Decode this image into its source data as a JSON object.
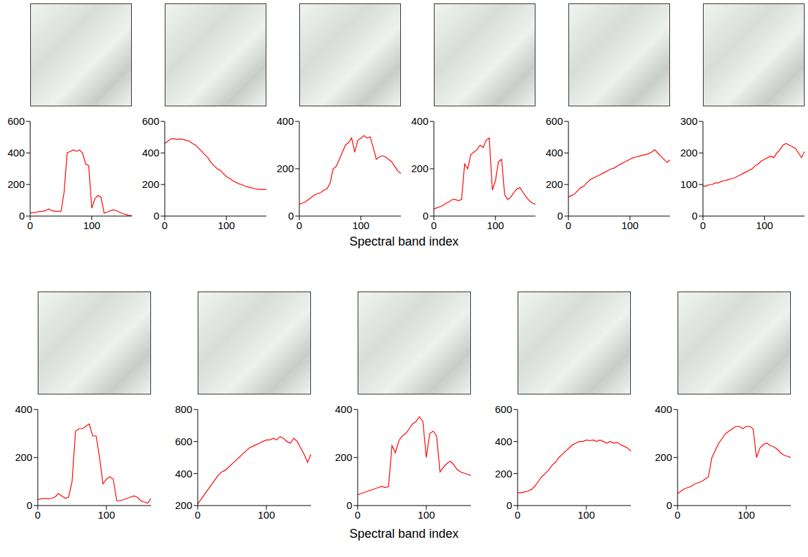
{
  "chart_data": [
    {
      "type": "line",
      "xlim": [
        0,
        165
      ],
      "xticks": [
        0,
        100
      ],
      "ylim": [
        0,
        600
      ],
      "yticks": [
        0,
        200,
        400,
        600
      ],
      "color": "#ff0000",
      "x": [
        0,
        5,
        10,
        15,
        20,
        25,
        30,
        35,
        40,
        45,
        50,
        55,
        60,
        65,
        70,
        75,
        80,
        85,
        90,
        95,
        100,
        105,
        110,
        115,
        120,
        125,
        130,
        135,
        140,
        145,
        150,
        155,
        160,
        165
      ],
      "values": [
        20,
        22,
        25,
        28,
        30,
        35,
        45,
        35,
        30,
        30,
        30,
        150,
        400,
        410,
        420,
        410,
        420,
        400,
        330,
        320,
        50,
        110,
        130,
        120,
        20,
        25,
        35,
        40,
        35,
        25,
        15,
        10,
        5,
        3
      ]
    },
    {
      "type": "line",
      "xlim": [
        0,
        165
      ],
      "xticks": [
        0,
        100
      ],
      "ylim": [
        0,
        600
      ],
      "yticks": [
        0,
        200,
        400,
        600
      ],
      "color": "#ff0000",
      "x": [
        0,
        5,
        10,
        15,
        20,
        25,
        30,
        35,
        40,
        45,
        50,
        55,
        60,
        65,
        70,
        75,
        80,
        85,
        90,
        95,
        100,
        105,
        110,
        115,
        120,
        125,
        130,
        135,
        140,
        145,
        150,
        155,
        160,
        165
      ],
      "values": [
        460,
        475,
        490,
        490,
        485,
        490,
        485,
        480,
        475,
        460,
        450,
        430,
        410,
        390,
        370,
        340,
        320,
        300,
        290,
        270,
        250,
        240,
        225,
        215,
        205,
        200,
        190,
        185,
        180,
        175,
        170,
        170,
        168,
        170
      ]
    },
    {
      "type": "line",
      "xlim": [
        0,
        165
      ],
      "xticks": [
        0,
        100
      ],
      "ylim": [
        0,
        400
      ],
      "yticks": [
        0,
        200,
        400
      ],
      "color": "#ff0000",
      "x_label": "Spectral band index",
      "x": [
        0,
        5,
        10,
        15,
        20,
        25,
        30,
        35,
        40,
        45,
        50,
        55,
        60,
        65,
        70,
        75,
        80,
        85,
        90,
        95,
        100,
        105,
        110,
        115,
        120,
        125,
        130,
        135,
        140,
        145,
        150,
        155,
        160,
        165
      ],
      "values": [
        50,
        55,
        60,
        70,
        80,
        90,
        95,
        100,
        110,
        115,
        140,
        200,
        210,
        240,
        270,
        300,
        310,
        330,
        270,
        320,
        330,
        340,
        330,
        335,
        290,
        240,
        250,
        255,
        250,
        240,
        230,
        210,
        190,
        180
      ]
    },
    {
      "type": "line",
      "xlim": [
        0,
        165
      ],
      "xticks": [
        0,
        100
      ],
      "ylim": [
        0,
        400
      ],
      "yticks": [
        0,
        200,
        400
      ],
      "color": "#ff0000",
      "x": [
        0,
        5,
        10,
        15,
        20,
        25,
        30,
        35,
        40,
        45,
        50,
        55,
        60,
        65,
        70,
        75,
        80,
        85,
        90,
        95,
        100,
        105,
        110,
        115,
        120,
        125,
        130,
        135,
        140,
        145,
        150,
        155,
        160,
        165
      ],
      "values": [
        30,
        35,
        40,
        45,
        55,
        60,
        70,
        70,
        65,
        70,
        220,
        200,
        260,
        270,
        280,
        300,
        290,
        320,
        330,
        110,
        150,
        230,
        240,
        90,
        70,
        80,
        100,
        115,
        120,
        100,
        80,
        65,
        55,
        50
      ]
    },
    {
      "type": "line",
      "xlim": [
        0,
        165
      ],
      "xticks": [
        0,
        100
      ],
      "ylim": [
        0,
        600
      ],
      "yticks": [
        0,
        200,
        400,
        600
      ],
      "color": "#ff0000",
      "x": [
        0,
        5,
        10,
        15,
        20,
        25,
        30,
        35,
        40,
        45,
        50,
        55,
        60,
        65,
        70,
        75,
        80,
        85,
        90,
        95,
        100,
        105,
        110,
        115,
        120,
        125,
        130,
        135,
        140,
        145,
        150,
        155,
        160,
        165
      ],
      "values": [
        120,
        130,
        140,
        160,
        180,
        190,
        210,
        230,
        240,
        250,
        260,
        270,
        280,
        290,
        300,
        305,
        320,
        330,
        340,
        350,
        360,
        370,
        375,
        380,
        385,
        390,
        395,
        405,
        420,
        400,
        380,
        360,
        340,
        355
      ]
    },
    {
      "type": "line",
      "xlim": [
        0,
        165
      ],
      "xticks": [
        0,
        100
      ],
      "ylim": [
        0,
        300
      ],
      "yticks": [
        0,
        100,
        200,
        300
      ],
      "color": "#ff0000",
      "x": [
        0,
        5,
        10,
        15,
        20,
        25,
        30,
        35,
        40,
        45,
        50,
        55,
        60,
        65,
        70,
        75,
        80,
        85,
        90,
        95,
        100,
        105,
        110,
        115,
        120,
        125,
        130,
        135,
        140,
        145,
        150,
        155,
        160,
        165
      ],
      "values": [
        95,
        95,
        100,
        100,
        105,
        105,
        110,
        112,
        115,
        118,
        120,
        125,
        130,
        135,
        140,
        145,
        150,
        160,
        165,
        175,
        180,
        185,
        190,
        185,
        200,
        210,
        225,
        230,
        225,
        220,
        215,
        200,
        185,
        205
      ]
    },
    {
      "type": "line",
      "xlim": [
        0,
        165
      ],
      "xticks": [
        0,
        100
      ],
      "ylim": [
        0,
        400
      ],
      "yticks": [
        0,
        200,
        400
      ],
      "color": "#ff0000",
      "x": [
        0,
        5,
        10,
        15,
        20,
        25,
        30,
        35,
        40,
        45,
        50,
        55,
        60,
        65,
        70,
        75,
        80,
        85,
        90,
        95,
        100,
        105,
        110,
        115,
        120,
        125,
        130,
        135,
        140,
        145,
        150,
        155,
        160,
        165
      ],
      "values": [
        25,
        28,
        30,
        28,
        30,
        35,
        50,
        40,
        30,
        35,
        100,
        310,
        320,
        320,
        330,
        340,
        290,
        290,
        200,
        90,
        110,
        120,
        110,
        20,
        20,
        25,
        30,
        35,
        40,
        35,
        20,
        15,
        10,
        30
      ]
    },
    {
      "type": "line",
      "xlim": [
        0,
        165
      ],
      "xticks": [
        0,
        100
      ],
      "ylim": [
        200,
        800
      ],
      "yticks": [
        200,
        400,
        600,
        800
      ],
      "color": "#ff0000",
      "x": [
        0,
        5,
        10,
        15,
        20,
        25,
        30,
        35,
        40,
        45,
        50,
        55,
        60,
        65,
        70,
        75,
        80,
        85,
        90,
        95,
        100,
        105,
        110,
        115,
        120,
        125,
        130,
        135,
        140,
        145,
        150,
        155,
        160,
        165
      ],
      "values": [
        210,
        240,
        270,
        300,
        330,
        360,
        390,
        410,
        420,
        440,
        460,
        480,
        500,
        520,
        540,
        560,
        570,
        580,
        590,
        600,
        610,
        610,
        620,
        610,
        630,
        620,
        600,
        590,
        620,
        600,
        560,
        520,
        470,
        520
      ]
    },
    {
      "type": "line",
      "xlim": [
        0,
        165
      ],
      "xticks": [
        0,
        100
      ],
      "ylim": [
        0,
        400
      ],
      "yticks": [
        0,
        200,
        400
      ],
      "color": "#ff0000",
      "x_label": "Spectral band index",
      "x": [
        0,
        5,
        10,
        15,
        20,
        25,
        30,
        35,
        40,
        45,
        50,
        55,
        60,
        65,
        70,
        75,
        80,
        85,
        90,
        95,
        100,
        105,
        110,
        115,
        120,
        125,
        130,
        135,
        140,
        145,
        150,
        155,
        160,
        165
      ],
      "values": [
        45,
        50,
        55,
        60,
        65,
        70,
        75,
        80,
        75,
        80,
        250,
        220,
        270,
        290,
        300,
        320,
        340,
        350,
        370,
        350,
        200,
        300,
        310,
        290,
        140,
        160,
        175,
        185,
        170,
        150,
        140,
        135,
        130,
        125
      ]
    },
    {
      "type": "line",
      "xlim": [
        0,
        165
      ],
      "xticks": [
        0,
        100
      ],
      "ylim": [
        0,
        600
      ],
      "yticks": [
        0,
        200,
        400,
        600
      ],
      "color": "#ff0000",
      "x": [
        0,
        5,
        10,
        15,
        20,
        25,
        30,
        35,
        40,
        45,
        50,
        55,
        60,
        65,
        70,
        75,
        80,
        85,
        90,
        95,
        100,
        105,
        110,
        115,
        120,
        125,
        130,
        135,
        140,
        145,
        150,
        155,
        160,
        165
      ],
      "values": [
        80,
        80,
        85,
        90,
        100,
        120,
        150,
        180,
        200,
        220,
        250,
        270,
        300,
        320,
        340,
        360,
        380,
        390,
        400,
        400,
        410,
        405,
        410,
        400,
        410,
        400,
        390,
        400,
        390,
        395,
        380,
        370,
        360,
        340
      ]
    },
    {
      "type": "line",
      "xlim": [
        0,
        165
      ],
      "xticks": [
        0,
        100
      ],
      "ylim": [
        0,
        400
      ],
      "yticks": [
        0,
        200,
        400
      ],
      "color": "#ff0000",
      "x": [
        0,
        5,
        10,
        15,
        20,
        25,
        30,
        35,
        40,
        45,
        50,
        55,
        60,
        65,
        70,
        75,
        80,
        85,
        90,
        95,
        100,
        105,
        110,
        115,
        120,
        125,
        130,
        135,
        140,
        145,
        150,
        155,
        160,
        165
      ],
      "values": [
        50,
        60,
        70,
        75,
        80,
        90,
        95,
        100,
        110,
        120,
        200,
        230,
        260,
        280,
        300,
        310,
        320,
        330,
        330,
        320,
        330,
        330,
        320,
        200,
        240,
        255,
        260,
        250,
        245,
        235,
        220,
        210,
        205,
        200
      ]
    }
  ]
}
